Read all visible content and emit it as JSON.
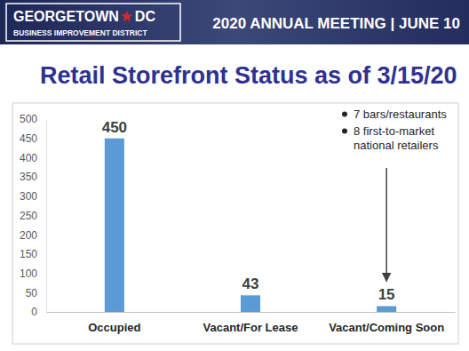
{
  "header": {
    "logo": "GEORGETOWN",
    "logo_suffix": "DC",
    "logo_subtitle": "BUSINESS IMPROVEMENT DISTRICT",
    "meeting": "2020 ANNUAL MEETING | JUNE 10"
  },
  "chart_data": {
    "type": "bar",
    "title": "Retail Storefront Status as of 3/15/20",
    "categories": [
      "Occupied",
      "Vacant/For Lease",
      "Vacant/Coming Soon"
    ],
    "values": [
      450,
      43,
      15
    ],
    "color": "#5b9bd5",
    "ylim": [
      0,
      500
    ],
    "yticks": [
      0,
      50,
      100,
      150,
      200,
      250,
      300,
      350,
      400,
      450,
      500
    ],
    "grid": false,
    "data_labels": true,
    "annotations": [
      "7 bars/restaurants",
      "8 first-to-market national retailers"
    ]
  }
}
